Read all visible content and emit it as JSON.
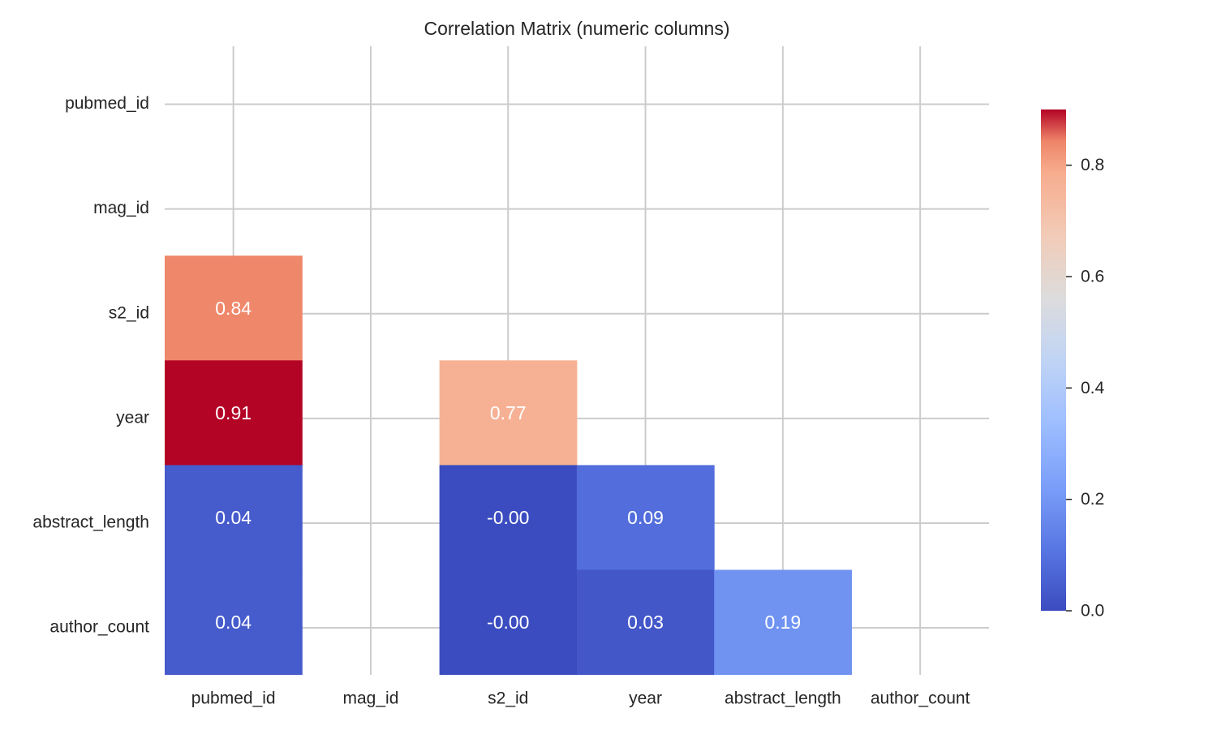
{
  "chart_data": {
    "type": "heatmap",
    "title": "Correlation Matrix (numeric columns)",
    "xlabel": "",
    "ylabel": "",
    "columns": [
      "pubmed_id",
      "mag_id",
      "s2_id",
      "year",
      "abstract_length",
      "author_count"
    ],
    "rows": [
      "pubmed_id",
      "mag_id",
      "s2_id",
      "year",
      "abstract_length",
      "author_count"
    ],
    "cells": [
      {
        "row": "s2_id",
        "col": "pubmed_id",
        "value": 0.84,
        "label": "0.84"
      },
      {
        "row": "year",
        "col": "pubmed_id",
        "value": 0.91,
        "label": "0.91"
      },
      {
        "row": "year",
        "col": "s2_id",
        "value": 0.77,
        "label": "0.77"
      },
      {
        "row": "abstract_length",
        "col": "pubmed_id",
        "value": 0.04,
        "label": "0.04"
      },
      {
        "row": "abstract_length",
        "col": "s2_id",
        "value": -0.0,
        "label": "-0.00"
      },
      {
        "row": "abstract_length",
        "col": "year",
        "value": 0.09,
        "label": "0.09"
      },
      {
        "row": "author_count",
        "col": "pubmed_id",
        "value": 0.04,
        "label": "0.04"
      },
      {
        "row": "author_count",
        "col": "s2_id",
        "value": -0.0,
        "label": "-0.00"
      },
      {
        "row": "author_count",
        "col": "year",
        "value": 0.03,
        "label": "0.03"
      },
      {
        "row": "author_count",
        "col": "abstract_length",
        "value": 0.19,
        "label": "0.19"
      }
    ],
    "masked": "upper triangle, diagonal, and mag_id row/column (no values)",
    "colormap": "coolwarm",
    "colorbar": {
      "range": [
        0.0,
        0.9
      ],
      "ticks": [
        0.0,
        0.2,
        0.4,
        0.6,
        0.8
      ],
      "tick_labels": [
        "0.0",
        "0.2",
        "0.4",
        "0.6",
        "0.8"
      ],
      "placement": "right"
    },
    "grid": true
  }
}
